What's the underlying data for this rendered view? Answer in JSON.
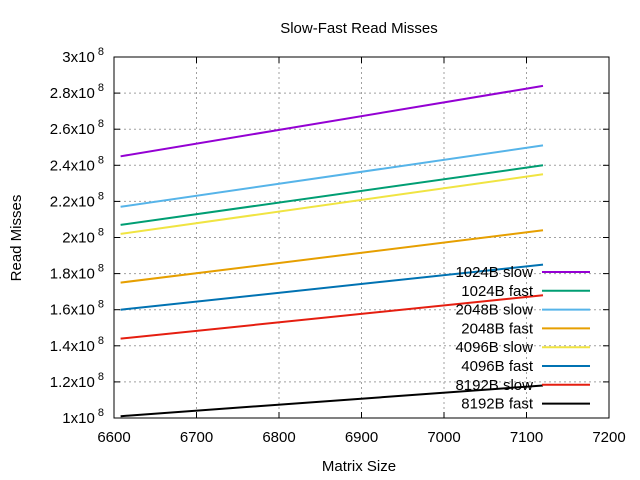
{
  "chart_data": {
    "type": "line",
    "title": "Slow-Fast Read Misses",
    "xlabel": "Matrix Size",
    "ylabel": "Read Misses",
    "xlim": [
      6600,
      7200
    ],
    "ylim": [
      100000000,
      300000000
    ],
    "x_ticks": [
      {
        "value": 6600,
        "label": "6600"
      },
      {
        "value": 6700,
        "label": "6700"
      },
      {
        "value": 6800,
        "label": "6800"
      },
      {
        "value": 6900,
        "label": "6900"
      },
      {
        "value": 7000,
        "label": "7000"
      },
      {
        "value": 7100,
        "label": "7100"
      },
      {
        "value": 7200,
        "label": "7200"
      }
    ],
    "y_ticks": [
      {
        "value": 100000000,
        "mantissa": "1x10",
        "exponent": "8"
      },
      {
        "value": 120000000,
        "mantissa": "1.2x10",
        "exponent": "8"
      },
      {
        "value": 140000000,
        "mantissa": "1.4x10",
        "exponent": "8"
      },
      {
        "value": 160000000,
        "mantissa": "1.6x10",
        "exponent": "8"
      },
      {
        "value": 180000000,
        "mantissa": "1.8x10",
        "exponent": "8"
      },
      {
        "value": 200000000,
        "mantissa": "2x10",
        "exponent": "8"
      },
      {
        "value": 220000000,
        "mantissa": "2.2x10",
        "exponent": "8"
      },
      {
        "value": 240000000,
        "mantissa": "2.4x10",
        "exponent": "8"
      },
      {
        "value": 260000000,
        "mantissa": "2.6x10",
        "exponent": "8"
      },
      {
        "value": 280000000,
        "mantissa": "2.8x10",
        "exponent": "8"
      },
      {
        "value": 300000000,
        "mantissa": "3x10",
        "exponent": "8"
      }
    ],
    "grid": true,
    "legend_position": "bottom-right",
    "series": [
      {
        "name": "1024B slow",
        "color": "#9400d3",
        "x": [
          6608,
          7120
        ],
        "y": [
          245000000,
          284000000
        ]
      },
      {
        "name": "1024B fast",
        "color": "#009e73",
        "x": [
          6608,
          7120
        ],
        "y": [
          207000000,
          240000000
        ]
      },
      {
        "name": "2048B slow",
        "color": "#56b4e9",
        "x": [
          6608,
          7120
        ],
        "y": [
          217000000,
          251000000
        ]
      },
      {
        "name": "2048B fast",
        "color": "#e69f00",
        "x": [
          6608,
          7120
        ],
        "y": [
          175000000,
          204000000
        ]
      },
      {
        "name": "4096B slow",
        "color": "#f0e442",
        "x": [
          6608,
          7120
        ],
        "y": [
          202000000,
          235000000
        ]
      },
      {
        "name": "4096B fast",
        "color": "#0072b2",
        "x": [
          6608,
          7120
        ],
        "y": [
          160000000,
          185000000
        ]
      },
      {
        "name": "8192B slow",
        "color": "#e51e10",
        "x": [
          6608,
          7120
        ],
        "y": [
          144000000,
          168000000
        ]
      },
      {
        "name": "8192B fast",
        "color": "#000000",
        "x": [
          6608,
          7120
        ],
        "y": [
          101000000,
          118000000
        ]
      }
    ]
  }
}
